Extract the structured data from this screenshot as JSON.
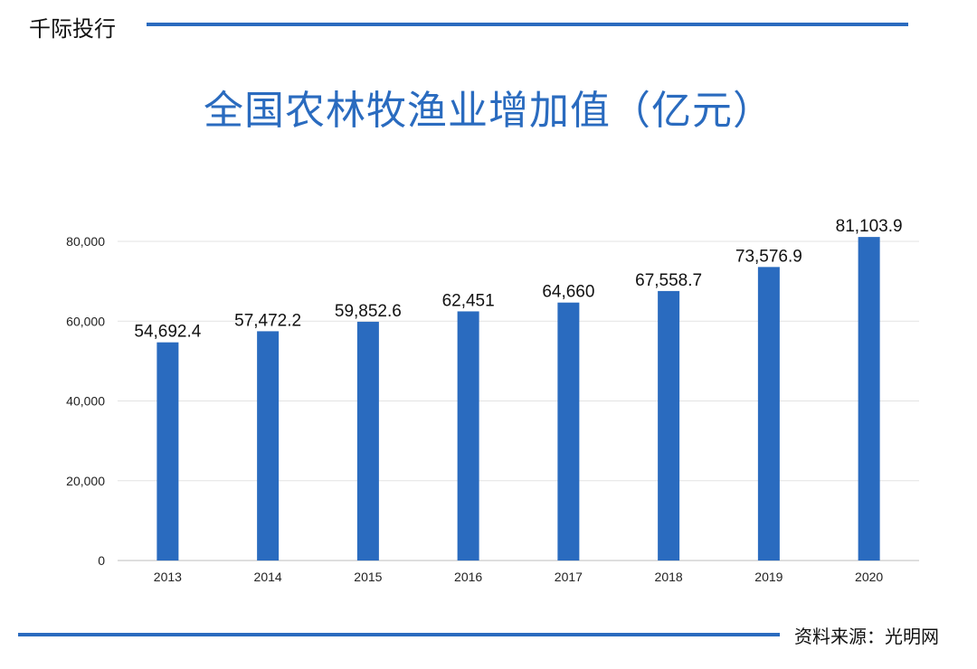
{
  "header": {
    "brand": "千际投行"
  },
  "footer": {
    "source": "资料来源：光明网"
  },
  "colors": {
    "accent": "#2a6bbf",
    "bar": "#2a6bbf",
    "grid": "#e3e3e3",
    "axis": "#bdbdbd"
  },
  "chart_data": {
    "type": "bar",
    "title": "全国农林牧渔业增加值（亿元）",
    "xlabel": "",
    "ylabel": "",
    "categories": [
      "2013",
      "2014",
      "2015",
      "2016",
      "2017",
      "2018",
      "2019",
      "2020"
    ],
    "values": [
      54692.4,
      57472.2,
      59852.6,
      62451,
      64660,
      67558.7,
      73576.9,
      81103.9
    ],
    "data_labels": [
      "54,692.4",
      "57,472.2",
      "59,852.6",
      "62,451",
      "64,660",
      "67,558.7",
      "73,576.9",
      "81,103.9"
    ],
    "yticks": [
      "0",
      "20,000",
      "40,000",
      "60,000",
      "80,000"
    ],
    "ylim": [
      0,
      80000
    ],
    "grid": true,
    "legend": "none"
  }
}
